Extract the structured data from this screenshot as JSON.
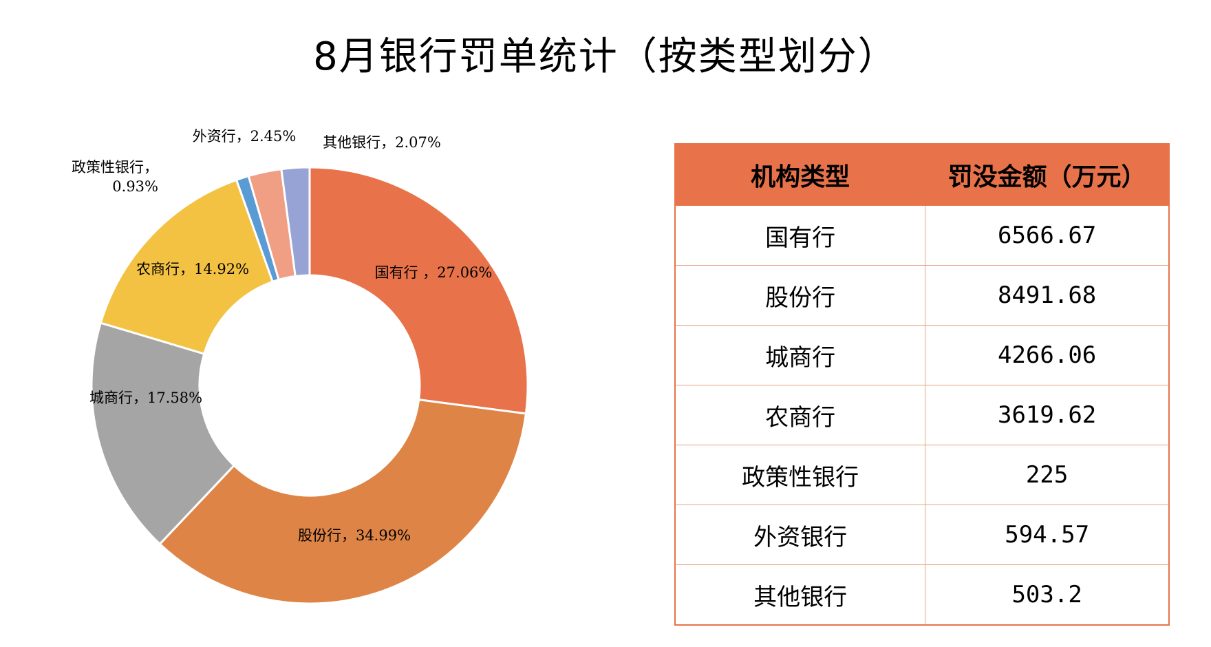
{
  "title": "8月银行罚单统计（按类型划分）",
  "chart_data": {
    "type": "donut",
    "title": "8月银行罚单统计（按类型划分）",
    "categories": [
      "国有行",
      "股份行",
      "城商行",
      "农商行",
      "政策性银行",
      "外资行",
      "其他银行"
    ],
    "values": [
      27.06,
      34.99,
      17.58,
      14.92,
      0.93,
      2.45,
      2.07
    ],
    "unit": "%",
    "colors": [
      "#e8734a",
      "#de8446",
      "#a5a5a5",
      "#f4c242",
      "#5b9bd5",
      "#f09e84",
      "#97a3d4"
    ],
    "labels": [
      {
        "lines": [
          "国有行 ，27.06%"
        ]
      },
      {
        "lines": [
          "股份行，34.99%"
        ]
      },
      {
        "lines": [
          "城商行，17.58%"
        ]
      },
      {
        "lines": [
          "农商行，14.92%"
        ]
      },
      {
        "lines": [
          "政策性银行，",
          "0.93%"
        ]
      },
      {
        "lines": [
          "外资行，2.45%"
        ]
      },
      {
        "lines": [
          "其他银行，2.07%"
        ]
      }
    ]
  },
  "table": {
    "headers": [
      "机构类型",
      "罚没金额（万元）"
    ],
    "rows": [
      [
        "国有行",
        "6566.67"
      ],
      [
        "股份行",
        "8491.68"
      ],
      [
        "城商行",
        "4266.06"
      ],
      [
        "农商行",
        "3619.62"
      ],
      [
        "政策性银行",
        "225"
      ],
      [
        "外资银行",
        "594.57"
      ],
      [
        "其他银行",
        "503.2"
      ]
    ]
  }
}
